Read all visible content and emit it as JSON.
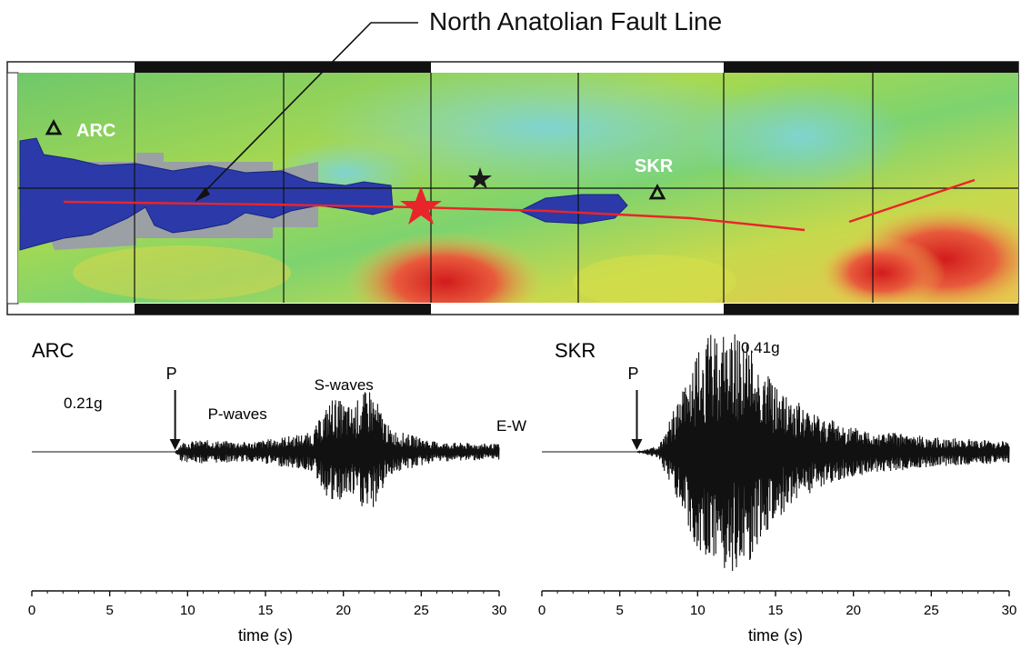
{
  "map": {
    "fault_label": "North Anatolian Fault Line",
    "stations": [
      {
        "id": "arc",
        "label": "ARC"
      },
      {
        "id": "skr",
        "label": "SKR"
      }
    ]
  },
  "chart_data": [
    {
      "type": "line",
      "title": "ARC",
      "xlabel": "time (s)",
      "xlim": [
        0,
        30
      ],
      "ticks": [
        0,
        5,
        10,
        15,
        20,
        25,
        30
      ],
      "peak_label": "0.21g",
      "component_label": "E-W",
      "annotations": [
        {
          "text": "P",
          "x": 9.2
        },
        {
          "text": "P-waves",
          "x": 12.5
        },
        {
          "text": "S-waves",
          "x": 20.5
        }
      ],
      "trace": {
        "onset": 9.2,
        "envelope": [
          [
            0,
            0
          ],
          [
            9.2,
            0
          ],
          [
            9.6,
            0.15
          ],
          [
            11,
            0.18
          ],
          [
            14,
            0.15
          ],
          [
            18,
            0.3
          ],
          [
            19.3,
            0.85
          ],
          [
            20.5,
            0.7
          ],
          [
            21.7,
            1.0
          ],
          [
            23,
            0.35
          ],
          [
            26,
            0.15
          ],
          [
            30,
            0.12
          ]
        ]
      }
    },
    {
      "type": "line",
      "title": "SKR",
      "xlabel": "time (s)",
      "xlim": [
        0,
        30
      ],
      "ticks": [
        0,
        5,
        10,
        15,
        20,
        25,
        30
      ],
      "peak_label": "0.41g",
      "annotations": [
        {
          "text": "P",
          "x": 6.1
        }
      ],
      "trace": {
        "onset": 6.1,
        "envelope": [
          [
            0,
            0
          ],
          [
            6.1,
            0
          ],
          [
            7.5,
            0.05
          ],
          [
            8.5,
            0.35
          ],
          [
            10,
            0.8
          ],
          [
            11,
            1.0
          ],
          [
            12.8,
            1.0
          ],
          [
            14,
            0.75
          ],
          [
            15,
            0.55
          ],
          [
            17,
            0.35
          ],
          [
            20,
            0.2
          ],
          [
            25,
            0.12
          ],
          [
            30,
            0.09
          ]
        ]
      }
    }
  ]
}
